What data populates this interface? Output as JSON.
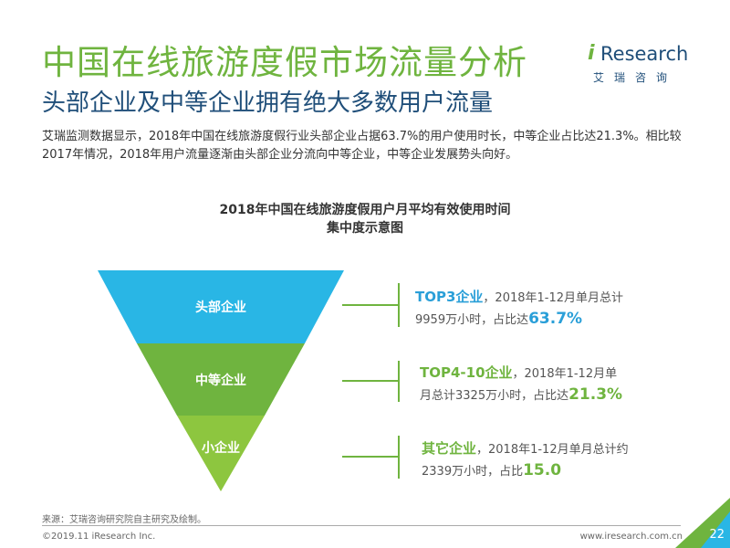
{
  "header": {
    "title": "中国在线旅游度假市场流量分析",
    "subtitle": "头部企业及中等企业拥有绝大多数用户流量",
    "description": "艾瑞监测数据显示，2018年中国在线旅游度假行业头部企业占据63.7%的用户使用时长，中等企业占比达21.3%。相比较2017年情况，2018年用户流量逐渐由头部企业分流向中等企业，中等企业发展势头向好。"
  },
  "logo": {
    "brand": "Research",
    "brand_prefix": "i",
    "cn": "艾瑞咨询"
  },
  "chart_title": {
    "line1": "2018年中国在线旅游度假用户月平均有效使用时间",
    "line2": "集中度示意图"
  },
  "funnel": {
    "levels": [
      {
        "label": "头部企业",
        "color": "#29b6e5"
      },
      {
        "label": "中等企业",
        "color": "#6fb43f"
      },
      {
        "label": "小企业",
        "color": "#8dc63f"
      }
    ]
  },
  "details": [
    {
      "head": "TOP3企业",
      "text1": "，2018年1-12月单月总计",
      "text2": "9959万小时，占比达",
      "pct": "63.7%"
    },
    {
      "head": "TOP4-10企业",
      "text1": "，2018年1-12月单",
      "text2": "月总计3325万小时，占比达",
      "pct": "21.3%"
    },
    {
      "head": "其它企业",
      "text1": "，2018年1-12月单月总计约",
      "text2": "2339万小时，占比",
      "pct": "15.0"
    }
  ],
  "chart_data": {
    "type": "table",
    "title": "2018年中国在线旅游度假用户月平均有效使用时间集中度示意图",
    "categories": [
      "头部企业",
      "中等企业",
      "小企业"
    ],
    "values": [
      63.7,
      21.3,
      15.0
    ]
  },
  "footer": {
    "source": "来源：艾瑞咨询研究院自主研究及绘制。",
    "copyright": "©2019.11 iResearch Inc.",
    "url": "www.iresearch.com.cn",
    "page": "22"
  }
}
